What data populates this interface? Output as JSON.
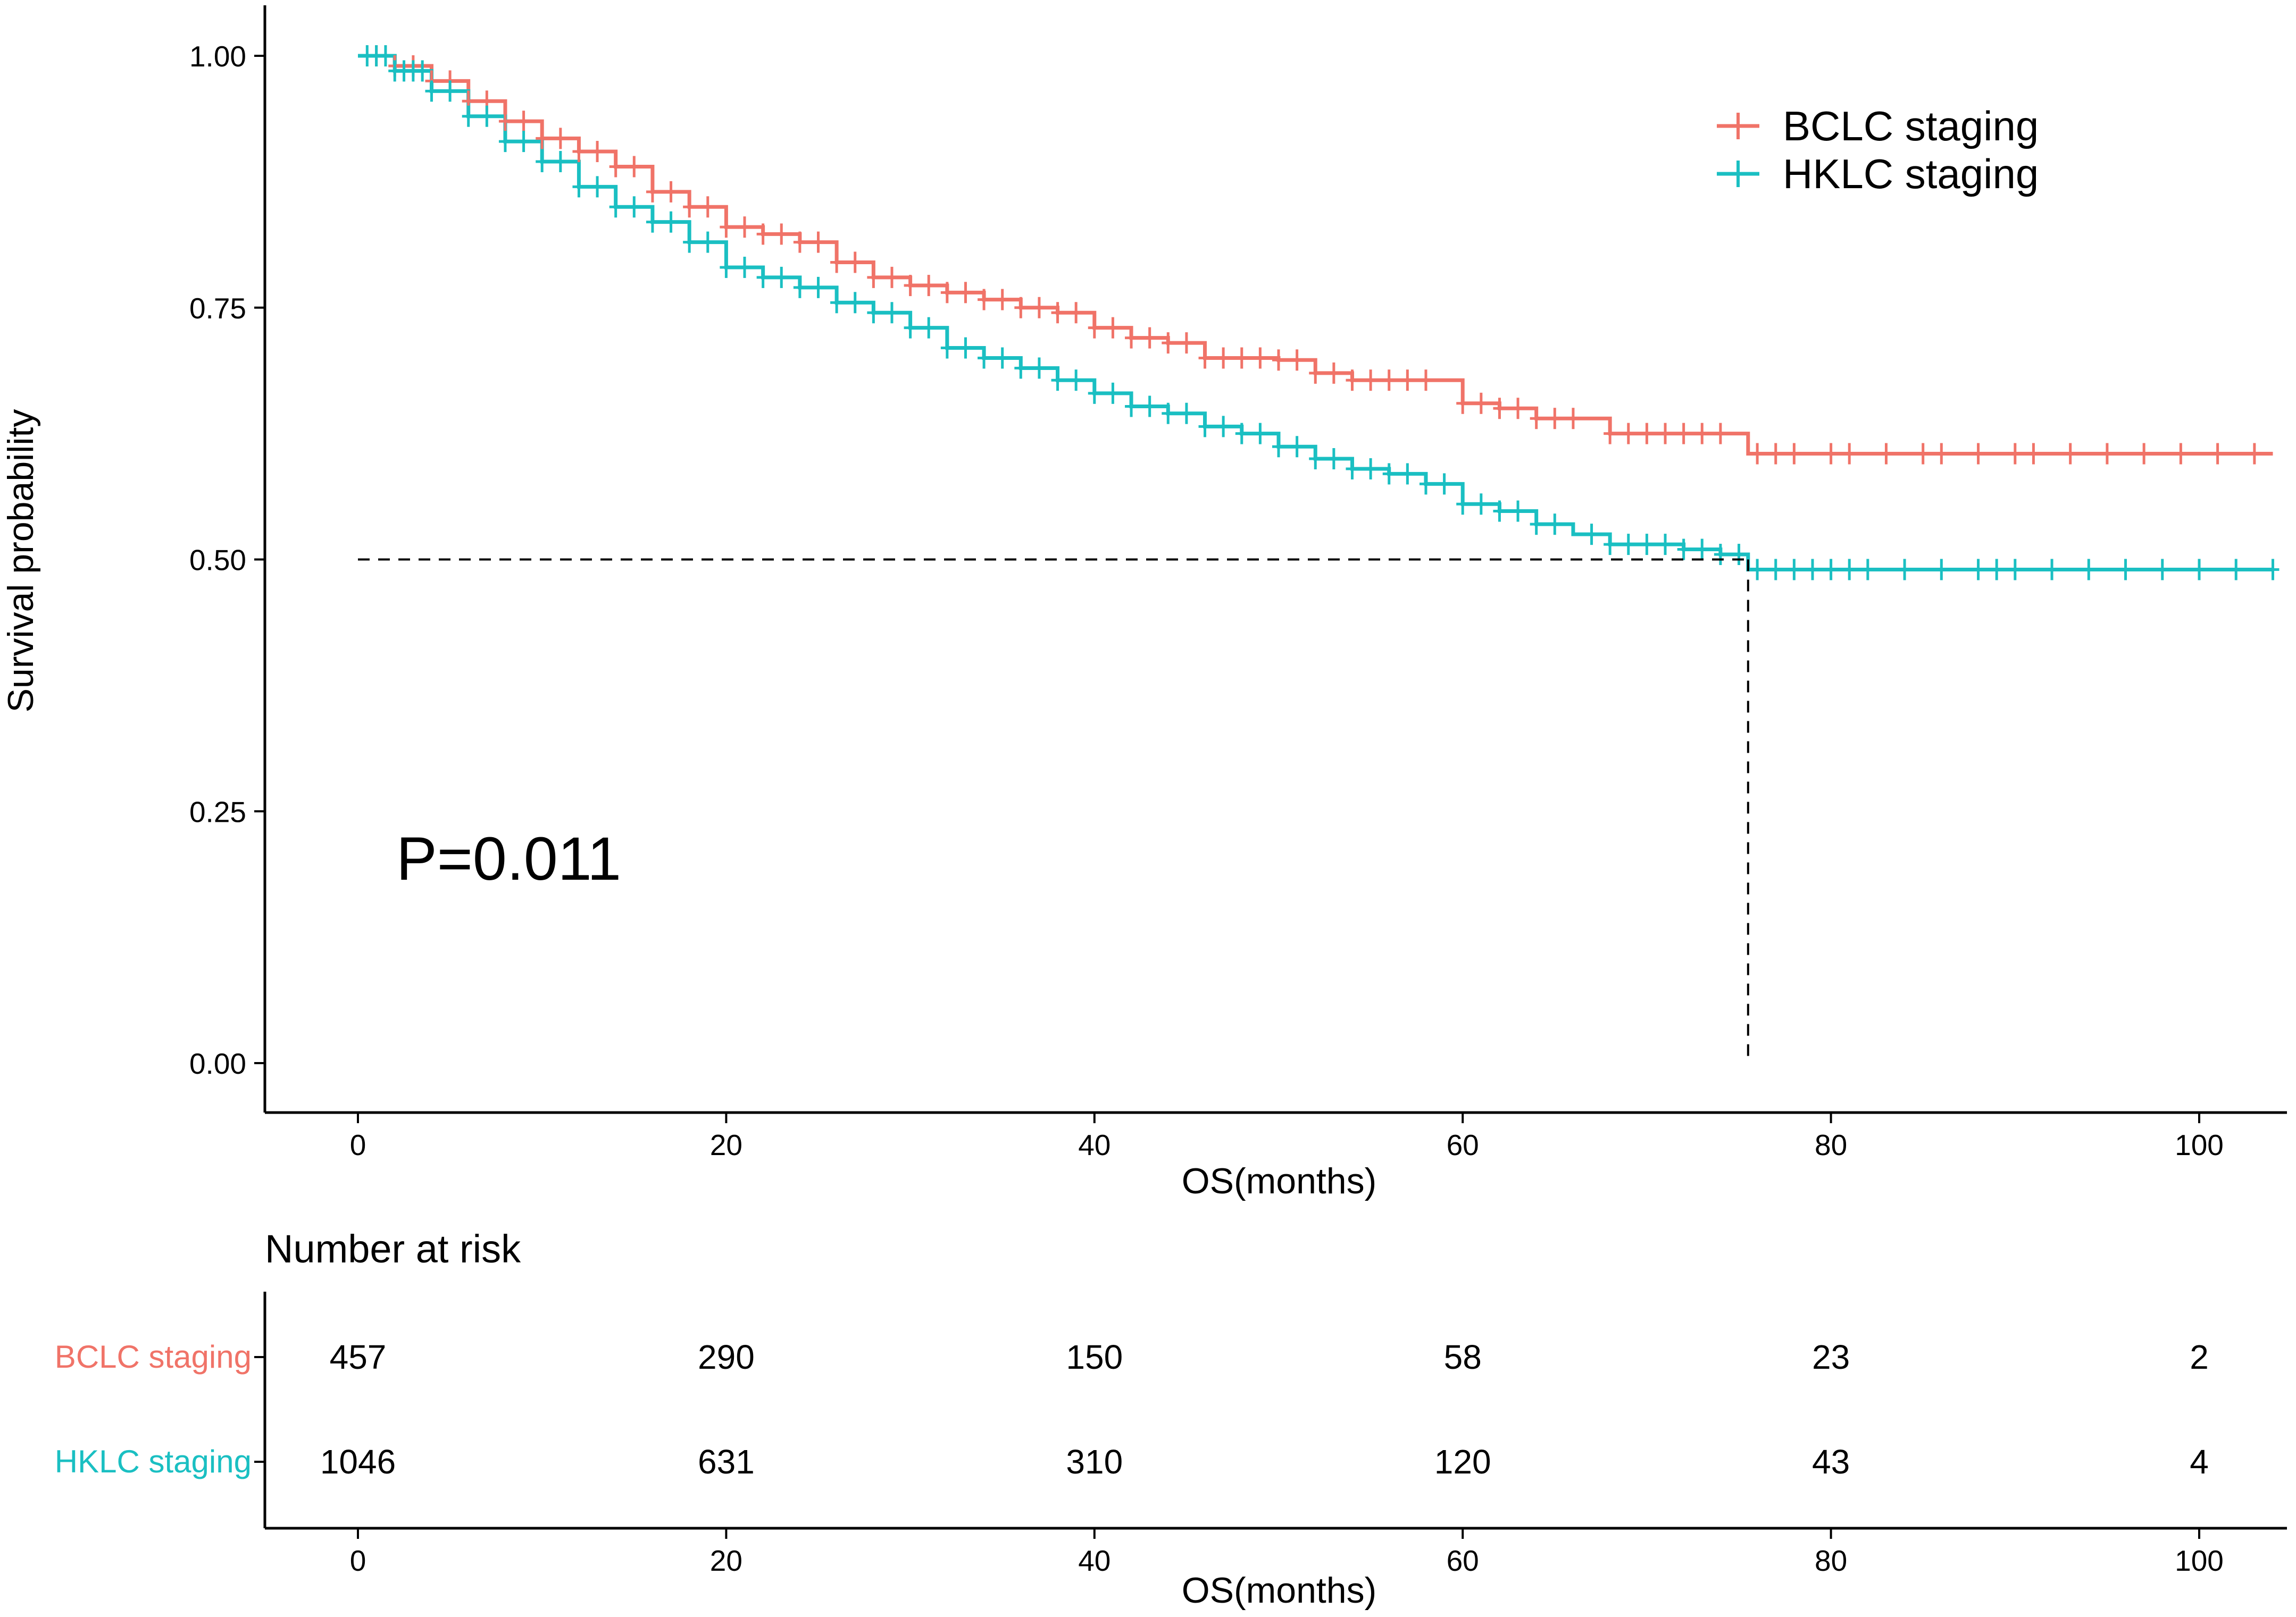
{
  "chart_data": [
    {
      "type": "line",
      "subtype": "kaplan-meier",
      "ylabel": "Survival probability",
      "xlabel": "OS(months)",
      "xlim": [
        0,
        104
      ],
      "ylim": [
        0,
        1
      ],
      "x_ticks": [
        0,
        20,
        40,
        60,
        80,
        100
      ],
      "y_ticks": [
        0.0,
        0.25,
        0.5,
        0.75,
        1.0
      ],
      "y_tick_labels": [
        "0.00",
        "0.25",
        "0.50",
        "0.75",
        "1.00"
      ],
      "annotation": "P=0.011",
      "median_line": {
        "y": 0.5,
        "x": 75.5
      },
      "legend": {
        "position": "top-right",
        "entries": [
          "BCLC staging",
          "HKLC staging"
        ]
      },
      "series": [
        {
          "name": "BCLC staging",
          "color": "#F07368",
          "x": [
            0,
            2,
            4,
            6,
            8,
            10,
            12,
            14,
            16,
            18,
            20,
            22,
            24,
            26,
            28,
            30,
            32,
            34,
            36,
            38,
            40,
            42,
            44,
            46,
            48,
            50,
            52,
            54,
            56,
            58,
            60,
            62,
            64,
            66,
            68,
            70,
            72,
            74,
            75.5,
            76,
            80,
            90,
            100,
            104
          ],
          "y": [
            1.0,
            0.99,
            0.975,
            0.955,
            0.935,
            0.918,
            0.905,
            0.89,
            0.865,
            0.85,
            0.83,
            0.823,
            0.815,
            0.795,
            0.78,
            0.772,
            0.765,
            0.758,
            0.75,
            0.745,
            0.73,
            0.72,
            0.715,
            0.7,
            0.7,
            0.698,
            0.685,
            0.678,
            0.678,
            0.678,
            0.655,
            0.65,
            0.64,
            0.64,
            0.625,
            0.625,
            0.625,
            0.625,
            0.605,
            0.605,
            0.605,
            0.605,
            0.605,
            0.605
          ],
          "censor_x": [
            1,
            2,
            3,
            4,
            5,
            6,
            7,
            8,
            9,
            10,
            11,
            12,
            13,
            14,
            15,
            16,
            17,
            18,
            19,
            20,
            21,
            22,
            23,
            24,
            25,
            26,
            27,
            28,
            29,
            30,
            31,
            32,
            33,
            34,
            35,
            36,
            37,
            38,
            39,
            40,
            41,
            42,
            43,
            44,
            45,
            46,
            47,
            48,
            49,
            50,
            51,
            52,
            53,
            54,
            55,
            56,
            57,
            58,
            60,
            61,
            62,
            63,
            64,
            65,
            66,
            68,
            69,
            70,
            71,
            72,
            73,
            74,
            76,
            77,
            78,
            80,
            81,
            83,
            85,
            86,
            88,
            90,
            91,
            93,
            95,
            97,
            99,
            101,
            103
          ]
        },
        {
          "name": "HKLC staging",
          "color": "#1ABFC2",
          "x": [
            0,
            2,
            4,
            6,
            8,
            10,
            12,
            14,
            16,
            18,
            20,
            22,
            24,
            26,
            28,
            30,
            32,
            34,
            36,
            38,
            40,
            42,
            44,
            46,
            48,
            50,
            52,
            54,
            56,
            58,
            60,
            62,
            64,
            66,
            68,
            70,
            72,
            74,
            75.5,
            76,
            80,
            90,
            100,
            104
          ],
          "y": [
            1.0,
            0.985,
            0.965,
            0.94,
            0.915,
            0.895,
            0.87,
            0.85,
            0.835,
            0.815,
            0.79,
            0.78,
            0.77,
            0.755,
            0.745,
            0.73,
            0.71,
            0.7,
            0.69,
            0.678,
            0.665,
            0.652,
            0.645,
            0.632,
            0.625,
            0.612,
            0.6,
            0.59,
            0.585,
            0.575,
            0.555,
            0.548,
            0.535,
            0.525,
            0.515,
            0.515,
            0.51,
            0.505,
            0.49,
            0.49,
            0.49,
            0.49,
            0.49,
            0.49
          ],
          "censor_x": [
            0.5,
            1,
            1.5,
            2,
            2.5,
            3,
            3.5,
            4,
            5,
            6,
            7,
            8,
            9,
            10,
            11,
            12,
            13,
            14,
            15,
            16,
            17,
            18,
            19,
            20,
            21,
            22,
            23,
            24,
            25,
            26,
            27,
            28,
            29,
            30,
            31,
            32,
            33,
            34,
            35,
            36,
            37,
            38,
            39,
            40,
            41,
            42,
            43,
            44,
            45,
            46,
            47,
            48,
            49,
            50,
            51,
            52,
            53,
            54,
            55,
            56,
            57,
            58,
            59,
            60,
            61,
            62,
            63,
            64,
            65,
            67,
            68,
            69,
            70,
            71,
            72,
            73,
            74,
            75,
            76,
            77,
            78,
            79,
            80,
            81,
            82,
            84,
            86,
            88,
            89,
            90,
            92,
            94,
            96,
            98,
            100,
            102,
            104
          ]
        }
      ]
    },
    {
      "type": "table",
      "title": "Number at risk",
      "xlabel": "OS(months)",
      "x_ticks": [
        0,
        20,
        40,
        60,
        80,
        100
      ],
      "rows": [
        {
          "label": "BCLC staging",
          "color": "#F07368",
          "values": [
            "457",
            "290",
            "150",
            "58",
            "23",
            "2"
          ]
        },
        {
          "label": "HKLC staging",
          "color": "#1ABFC2",
          "values": [
            "1046",
            "631",
            "310",
            "120",
            "43",
            "4"
          ]
        }
      ]
    }
  ]
}
